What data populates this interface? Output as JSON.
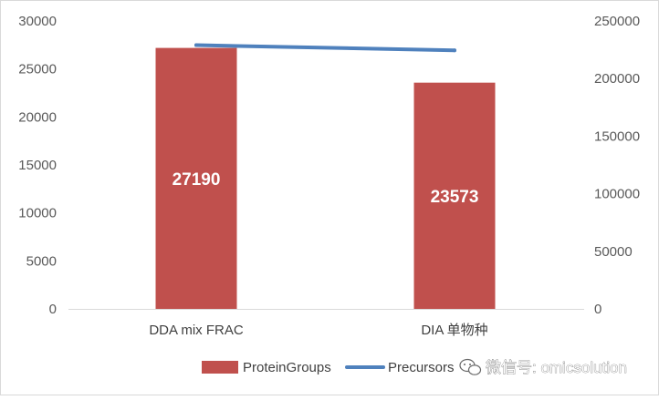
{
  "chart_data": {
    "type": "bar",
    "categories": [
      "DDA mix FRAC",
      "DIA 单物种"
    ],
    "series": [
      {
        "name": "ProteinGroups",
        "kind": "bar",
        "axis": "left",
        "color": "#C0504D",
        "values": [
          27190,
          23573
        ],
        "data_labels": [
          "27190",
          "23573"
        ]
      },
      {
        "name": "Precursors",
        "kind": "line",
        "axis": "right",
        "color": "#4F81BD",
        "values": [
          229000,
          224500
        ]
      }
    ],
    "y_left": {
      "min": 0,
      "max": 30000,
      "step": 5000
    },
    "y_right": {
      "min": 0,
      "max": 250000,
      "step": 50000
    },
    "grid": false,
    "legend_position": "bottom",
    "left_ticks": [
      "0",
      "5000",
      "10000",
      "15000",
      "20000",
      "25000",
      "30000"
    ],
    "right_ticks": [
      "0",
      "50000",
      "100000",
      "150000",
      "200000",
      "250000"
    ]
  },
  "watermark": {
    "text": "微信号: omicsolution",
    "icon": "wechat-icon"
  }
}
